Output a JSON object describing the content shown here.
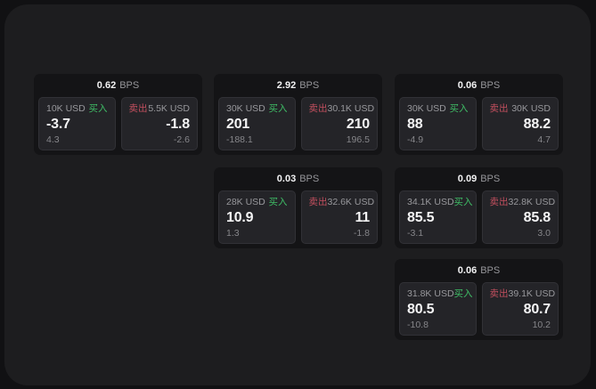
{
  "labels": {
    "buy": "买入",
    "sell": "卖出",
    "unit": "BPS"
  },
  "colors": {
    "background": "#111113",
    "panel": "#1d1d1f",
    "card": "#141416",
    "pane": "#242428",
    "buy_green": "#3fbe66",
    "sell_red": "#c24f5e",
    "value_white": "#f4f4f5",
    "label_gray": "#98989c"
  },
  "cards": [
    {
      "bps": "0.62",
      "unit": "BPS",
      "buy": {
        "amount": "10K USD",
        "tag": "买入",
        "price": "-3.7",
        "change": "4.3"
      },
      "sell": {
        "tag": "卖出",
        "amount": "5.5K USD",
        "price": "-1.8",
        "change": "-2.6"
      }
    },
    {
      "bps": "2.92",
      "unit": "BPS",
      "buy": {
        "amount": "30K USD",
        "tag": "买入",
        "price": "201",
        "change": "-188.1"
      },
      "sell": {
        "tag": "卖出",
        "amount": "30.1K USD",
        "price": "210",
        "change": "196.5"
      }
    },
    {
      "bps": "0.06",
      "unit": "BPS",
      "buy": {
        "amount": "30K USD",
        "tag": "买入",
        "price": "88",
        "change": "-4.9"
      },
      "sell": {
        "tag": "卖出",
        "amount": "30K USD",
        "price": "88.2",
        "change": "4.7"
      }
    },
    {
      "bps": "0.03",
      "unit": "BPS",
      "buy": {
        "amount": "28K USD",
        "tag": "买入",
        "price": "10.9",
        "change": "1.3"
      },
      "sell": {
        "tag": "卖出",
        "amount": "32.6K USD",
        "price": "11",
        "change": "-1.8"
      }
    },
    {
      "bps": "0.09",
      "unit": "BPS",
      "buy": {
        "amount": "34.1K USD",
        "tag": "买入",
        "price": "85.5",
        "change": "-3.1"
      },
      "sell": {
        "tag": "卖出",
        "amount": "32.8K USD",
        "price": "85.8",
        "change": "3.0"
      }
    },
    {
      "bps": "0.06",
      "unit": "BPS",
      "buy": {
        "amount": "31.8K USD",
        "tag": "买入",
        "price": "80.5",
        "change": "-10.8"
      },
      "sell": {
        "tag": "卖出",
        "amount": "39.1K USD",
        "price": "80.7",
        "change": "10.2"
      }
    }
  ]
}
